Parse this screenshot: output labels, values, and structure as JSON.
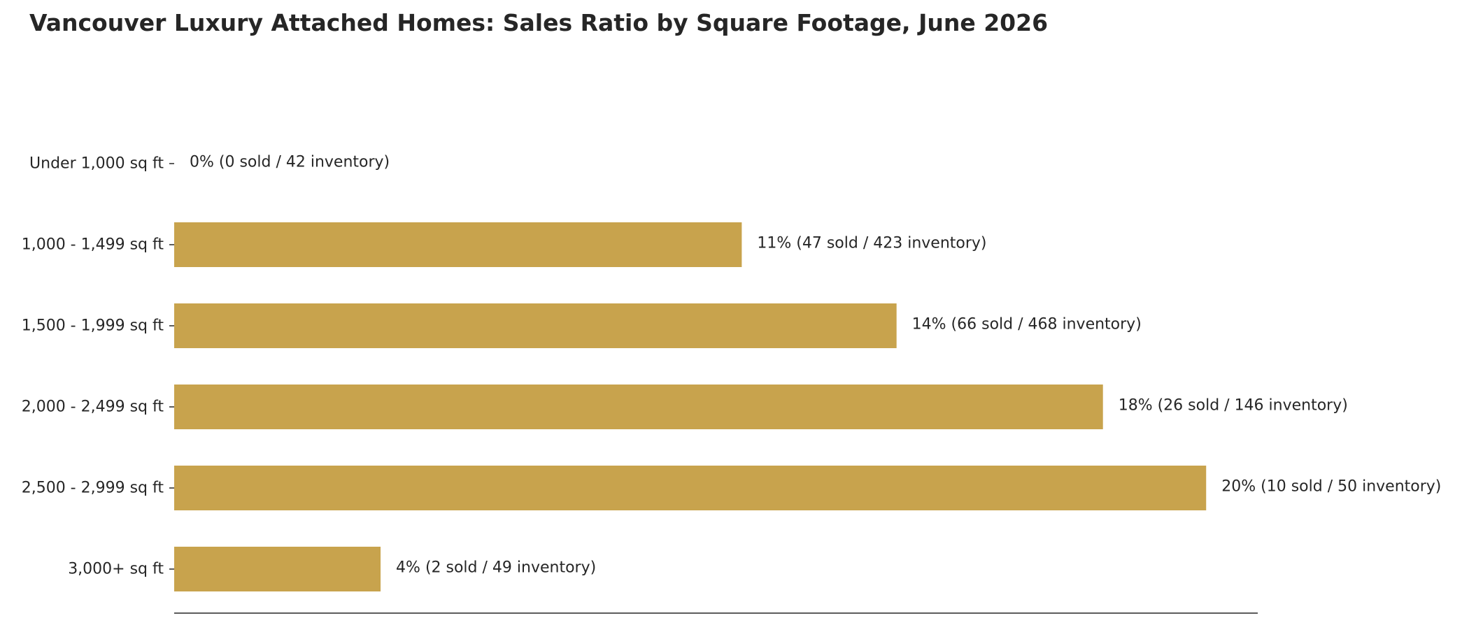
{
  "chart_data": {
    "type": "bar",
    "orientation": "horizontal",
    "title": "Vancouver Luxury Attached Homes: Sales Ratio by Square Footage, June 2026",
    "xlabel": "",
    "ylabel": "",
    "xlim": [
      0,
      21
    ],
    "grid": false,
    "legend": "none",
    "bar_color": "#C8A34D",
    "categories": [
      "Under 1,000 sq ft",
      "1,000 - 1,499 sq ft",
      "1,500 - 1,999 sq ft",
      "2,000 - 2,499 sq ft",
      "2,500 - 2,999 sq ft",
      "3,000+ sq ft"
    ],
    "values": [
      0,
      11,
      14,
      18,
      20,
      4
    ],
    "data_labels": [
      "0%  (0 sold / 42 inventory)",
      "11%  (47 sold / 423 inventory)",
      "14%  (66 sold / 468 inventory)",
      "18%  (26 sold / 146 inventory)",
      "20%  (10 sold / 50 inventory)",
      "4%  (2 sold / 49 inventory)"
    ],
    "sold": [
      0,
      47,
      66,
      26,
      10,
      2
    ],
    "inventory": [
      42,
      423,
      468,
      146,
      50,
      49
    ]
  }
}
